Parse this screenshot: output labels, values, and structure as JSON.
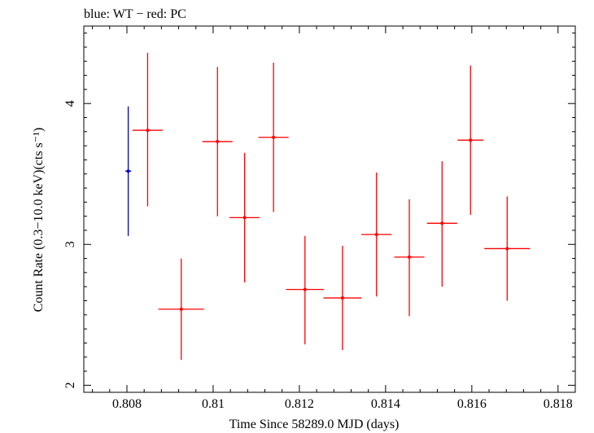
{
  "chart_data": {
    "type": "scatter",
    "title": "blue: WT − red: PC",
    "xlabel": "Time Since 58289.0 MJD (days)",
    "ylabel": "Count Rate (0.3−10.0 keV)(cts s⁻¹)",
    "xlim": [
      0.807,
      0.8184
    ],
    "ylim": [
      1.95,
      4.55
    ],
    "x_ticks": [
      0.808,
      0.81,
      0.812,
      0.814,
      0.816,
      0.818
    ],
    "x_tick_labels": [
      "0.808",
      "0.81",
      "0.812",
      "0.814",
      "0.816",
      "0.818"
    ],
    "y_ticks": [
      2,
      3,
      4
    ],
    "y_tick_labels": [
      "2",
      "3",
      "4"
    ],
    "series": [
      {
        "name": "WT",
        "color": "#0000cc",
        "points": [
          {
            "x": 0.80803,
            "xerr": 7e-05,
            "y": 3.52,
            "ylo": 3.06,
            "yhi": 3.98
          }
        ]
      },
      {
        "name": "PC",
        "color": "#ff0000",
        "points": [
          {
            "x": 0.80848,
            "xerr": 0.00035,
            "y": 3.81,
            "ylo": 3.27,
            "yhi": 4.36
          },
          {
            "x": 0.80926,
            "xerr": 0.00053,
            "y": 2.54,
            "ylo": 2.18,
            "yhi": 2.9
          },
          {
            "x": 0.8101,
            "xerr": 0.00035,
            "y": 3.73,
            "ylo": 3.2,
            "yhi": 4.26
          },
          {
            "x": 0.81073,
            "xerr": 0.00035,
            "y": 3.19,
            "ylo": 2.73,
            "yhi": 3.65
          },
          {
            "x": 0.8114,
            "xerr": 0.00035,
            "y": 3.76,
            "ylo": 3.23,
            "yhi": 4.29
          },
          {
            "x": 0.81213,
            "xerr": 0.00044,
            "y": 2.68,
            "ylo": 2.29,
            "yhi": 3.06
          },
          {
            "x": 0.813,
            "xerr": 0.00044,
            "y": 2.62,
            "ylo": 2.25,
            "yhi": 2.99
          },
          {
            "x": 0.81379,
            "xerr": 0.00035,
            "y": 3.07,
            "ylo": 2.63,
            "yhi": 3.51
          },
          {
            "x": 0.81455,
            "xerr": 0.00035,
            "y": 2.91,
            "ylo": 2.49,
            "yhi": 3.32
          },
          {
            "x": 0.81531,
            "xerr": 0.00035,
            "y": 3.15,
            "ylo": 2.7,
            "yhi": 3.59
          },
          {
            "x": 0.81597,
            "xerr": 0.0003,
            "y": 3.74,
            "ylo": 3.21,
            "yhi": 4.27
          },
          {
            "x": 0.81682,
            "xerr": 0.00053,
            "y": 2.97,
            "ylo": 2.6,
            "yhi": 3.34
          }
        ]
      }
    ],
    "grid": false,
    "legend": "none"
  }
}
